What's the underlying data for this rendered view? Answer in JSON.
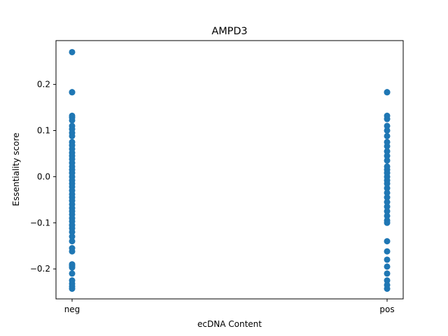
{
  "chart_data": {
    "type": "scatter",
    "title": "AMPD3",
    "xlabel": "ecDNA Content",
    "ylabel": "Essentiality score",
    "categories": [
      "neg",
      "pos"
    ],
    "ylim": [
      -0.265,
      0.295
    ],
    "yticks": [
      -0.2,
      -0.1,
      0.0,
      0.1,
      0.2
    ],
    "ytick_labels": [
      "−0.2",
      "−0.1",
      "0.0",
      "0.1",
      "0.2"
    ],
    "grid": false,
    "series": [
      {
        "category": "neg",
        "color": "#1f77b4",
        "values": [
          0.27,
          0.183,
          0.183,
          0.132,
          0.128,
          0.122,
          0.11,
          0.103,
          0.095,
          0.088,
          0.075,
          0.068,
          0.06,
          0.052,
          0.045,
          0.038,
          0.03,
          0.022,
          0.015,
          0.008,
          0.0,
          -0.008,
          -0.015,
          -0.022,
          -0.03,
          -0.038,
          -0.045,
          -0.052,
          -0.06,
          -0.068,
          -0.075,
          -0.082,
          -0.09,
          -0.097,
          -0.105,
          -0.112,
          -0.12,
          -0.13,
          -0.14,
          -0.155,
          -0.162,
          -0.19,
          -0.193,
          -0.197,
          -0.21,
          -0.225,
          -0.232,
          -0.238,
          -0.243
        ]
      },
      {
        "category": "pos",
        "color": "#1f77b4",
        "values": [
          0.183,
          0.183,
          0.132,
          0.125,
          0.11,
          0.1,
          0.088,
          0.075,
          0.066,
          0.055,
          0.045,
          0.035,
          0.022,
          0.015,
          0.008,
          0.0,
          -0.008,
          -0.015,
          -0.025,
          -0.035,
          -0.045,
          -0.055,
          -0.065,
          -0.075,
          -0.085,
          -0.095,
          -0.1,
          -0.14,
          -0.162,
          -0.18,
          -0.195,
          -0.21,
          -0.225,
          -0.235,
          -0.243
        ]
      }
    ]
  }
}
